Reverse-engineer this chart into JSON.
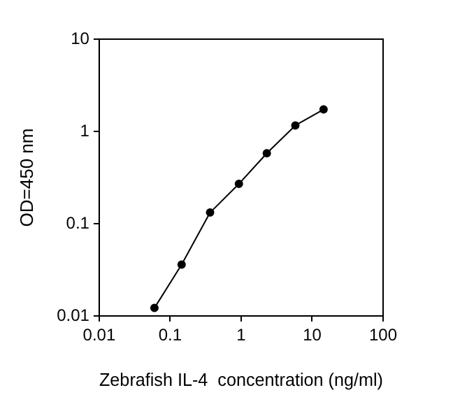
{
  "chart_data": {
    "type": "line",
    "xlabel": "Zebrafish IL-4  concentration (ng/ml)",
    "ylabel": "OD=450 nm",
    "x": [
      0.06,
      0.145,
      0.365,
      0.93,
      2.3,
      5.8,
      14.5
    ],
    "series": [
      {
        "color": "#000000",
        "values": [
          0.0122,
          0.036,
          0.132,
          0.27,
          0.58,
          1.16,
          1.73
        ]
      }
    ],
    "log": "xy",
    "marker": "circle",
    "line_style": "solid",
    "grid": false,
    "legend": false,
    "xlim": [
      0.01,
      100
    ],
    "xticks": [
      0.01,
      0.1,
      1,
      10,
      100
    ],
    "ylim": [
      0.01,
      10
    ],
    "yticks": [
      0.01,
      0.1,
      1,
      10
    ]
  }
}
